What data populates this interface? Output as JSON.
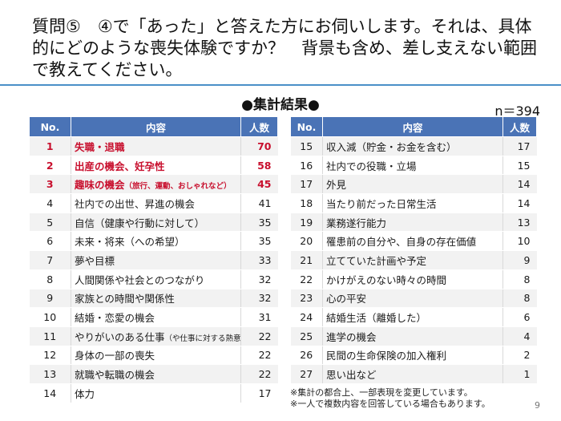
{
  "title": "質問⑤　④で「あった」と答えた方にお伺いします。それは、具体的にどのような喪失体験ですか？　背景も含め、差し支えない範囲で教えてください。",
  "subhead": "●集計結果●",
  "n_count": "n＝394",
  "headers": {
    "no": "No.",
    "content": "内容",
    "count": "人数"
  },
  "left_rows": [
    {
      "no": "1",
      "content": "失職・退職",
      "note": "",
      "count": "70"
    },
    {
      "no": "2",
      "content": "出産の機会、妊孕性",
      "note": "",
      "count": "58"
    },
    {
      "no": "3",
      "content": "趣味の機会",
      "note": "（旅行、運動、おしゃれなど）",
      "count": "45"
    },
    {
      "no": "4",
      "content": "社内での出世、昇進の機会",
      "note": "",
      "count": "41"
    },
    {
      "no": "5",
      "content": "自信（健康や行動に対して）",
      "note": "",
      "count": "35"
    },
    {
      "no": "6",
      "content": "未来・将来（への希望）",
      "note": "",
      "count": "35"
    },
    {
      "no": "7",
      "content": "夢や目標",
      "note": "",
      "count": "33"
    },
    {
      "no": "8",
      "content": "人間関係や社会とのつながり",
      "note": "",
      "count": "32"
    },
    {
      "no": "9",
      "content": "家族との時間や関係性",
      "note": "",
      "count": "32"
    },
    {
      "no": "10",
      "content": "結婚・恋愛の機会",
      "note": "",
      "count": "31"
    },
    {
      "no": "11",
      "content": "やりがいのある仕事",
      "note": "（や仕事に対する熱意）",
      "count": "22"
    },
    {
      "no": "12",
      "content": "身体の一部の喪失",
      "note": "",
      "count": "22"
    },
    {
      "no": "13",
      "content": "就職や転職の機会",
      "note": "",
      "count": "22"
    },
    {
      "no": "14",
      "content": "体力",
      "note": "",
      "count": "17"
    }
  ],
  "right_rows": [
    {
      "no": "15",
      "content": "収入減（貯金・お金を含む）",
      "count": "17"
    },
    {
      "no": "16",
      "content": "社内での役職・立場",
      "count": "15"
    },
    {
      "no": "17",
      "content": "外見",
      "count": "14"
    },
    {
      "no": "18",
      "content": "当たり前だった日常生活",
      "count": "14"
    },
    {
      "no": "19",
      "content": "業務遂行能力",
      "count": "13"
    },
    {
      "no": "20",
      "content": "罹患前の自分や、自身の存在価値",
      "count": "10"
    },
    {
      "no": "21",
      "content": "立てていた計画や予定",
      "count": "9"
    },
    {
      "no": "22",
      "content": "かけがえのない時々の時間",
      "count": "8"
    },
    {
      "no": "23",
      "content": "心の平安",
      "count": "8"
    },
    {
      "no": "24",
      "content": "結婚生活（離婚した）",
      "count": "6"
    },
    {
      "no": "25",
      "content": "進学の機会",
      "count": "4"
    },
    {
      "no": "26",
      "content": "民間の生命保険の加入権利",
      "count": "2"
    },
    {
      "no": "27",
      "content": "思い出など",
      "count": "1"
    }
  ],
  "notes": [
    "※集計の都合上、一部表現を変更しています。",
    "※一人で複数内容を回答している場合もあります。"
  ],
  "page_number": "9",
  "colors": {
    "header_bg": "#4a73b6",
    "highlight": "#c8102e",
    "rule": "#4a90c8"
  }
}
